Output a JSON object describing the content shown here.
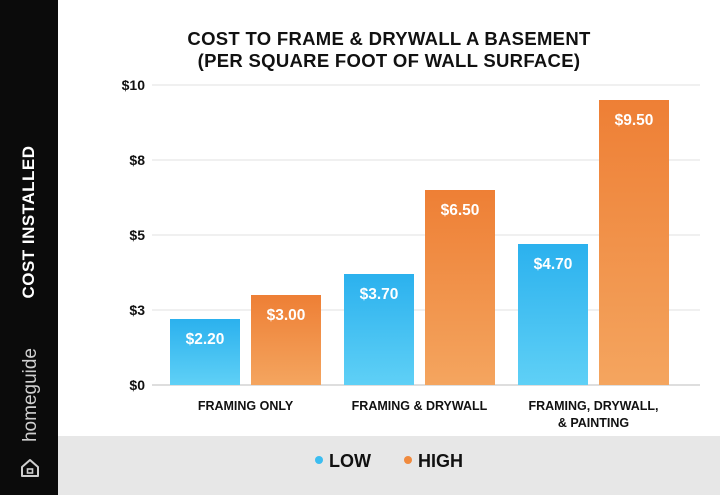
{
  "brand": "homeguide",
  "colors": {
    "low": "#3cbdf0",
    "high": "#f08a3e",
    "sidebar": "#0b0b0b",
    "legend_band": "#e7e7e7"
  },
  "chart_data": {
    "type": "bar",
    "title_lines": [
      "COST TO FRAME & DRYWALL A BASEMENT",
      "(PER SQUARE FOOT OF WALL SURFACE)"
    ],
    "ylabel": "COST INSTALLED",
    "xlabel": "",
    "categories": [
      [
        "FRAMING ONLY"
      ],
      [
        "FRAMING & DRYWALL"
      ],
      [
        "FRAMING, DRYWALL,",
        "& PAINTING"
      ]
    ],
    "series": [
      {
        "name": "LOW",
        "color": "#3cbdf0",
        "values": [
          2.2,
          3.7,
          4.7
        ],
        "labels": [
          "$2.20",
          "$3.70",
          "$4.70"
        ]
      },
      {
        "name": "HIGH",
        "color": "#f08a3e",
        "values": [
          3.0,
          6.5,
          9.5
        ],
        "labels": [
          "$3.00",
          "$6.50",
          "$9.50"
        ]
      }
    ],
    "yticks": [
      {
        "value": 0,
        "label": "$0"
      },
      {
        "value": 2.5,
        "label": "$3"
      },
      {
        "value": 5,
        "label": "$5"
      },
      {
        "value": 7.5,
        "label": "$8"
      },
      {
        "value": 10,
        "label": "$10"
      }
    ],
    "ylim": [
      0,
      10
    ],
    "grid": true,
    "legend_position": "bottom"
  }
}
